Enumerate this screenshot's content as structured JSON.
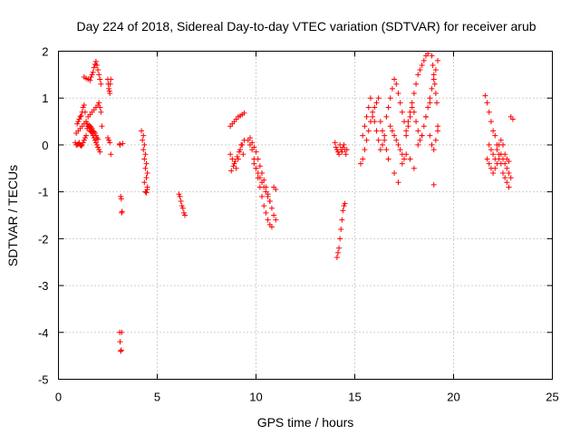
{
  "chart_data": {
    "type": "scatter",
    "title": "Day 224 of 2018, Sidereal Day-to-day VTEC variation (SDTVAR) for receiver arub",
    "xlabel": "GPS time / hours",
    "ylabel": "SDTVAR / TECUs",
    "xlim": [
      0,
      25
    ],
    "ylim": [
      -5,
      2
    ],
    "xticks": [
      0,
      5,
      10,
      15,
      20,
      25
    ],
    "yticks": [
      -5,
      -4,
      -3,
      -2,
      -1,
      0,
      1,
      2
    ],
    "xtick_labels": [
      "0",
      "5",
      "10",
      "15",
      "20",
      "25"
    ],
    "ytick_labels": [
      "-5",
      "-4",
      "-3",
      "-2",
      "-1",
      "0",
      "1",
      "2"
    ],
    "grid": true,
    "marker": "+",
    "color": "#ff0000",
    "series": [
      {
        "name": "SDTVAR",
        "x": [
          0.85,
          0.9,
          0.95,
          1.0,
          1.05,
          1.1,
          1.15,
          1.2,
          1.25,
          1.3,
          1.35,
          1.4,
          1.45,
          1.5,
          1.55,
          1.6,
          1.65,
          1.7,
          1.75,
          1.8,
          1.85,
          1.9,
          1.95,
          2.0,
          2.05,
          2.1,
          0.9,
          0.95,
          1.0,
          1.05,
          1.1,
          1.15,
          1.2,
          1.25,
          1.3,
          1.35,
          1.4,
          1.45,
          1.5,
          1.55,
          1.6,
          1.65,
          1.7,
          1.75,
          1.8,
          1.85,
          1.9,
          1.95,
          2.0,
          1.0,
          1.1,
          1.2,
          1.3,
          1.4,
          1.5,
          1.6,
          1.7,
          1.8,
          1.9,
          2.0,
          2.05,
          2.1,
          2.15,
          1.3,
          1.4,
          1.5,
          1.6,
          1.65,
          1.7,
          1.75,
          1.8,
          1.85,
          1.9,
          1.95,
          2.0,
          2.05,
          2.1,
          2.15,
          2.2,
          2.5,
          2.52,
          2.55,
          2.58,
          2.6,
          2.62,
          2.65,
          2.5,
          2.55,
          2.6,
          2.65,
          3.1,
          3.12,
          3.15,
          3.18,
          3.2,
          3.22,
          3.25,
          3.1,
          3.12,
          3.15,
          3.18,
          3.2,
          4.2,
          4.25,
          4.3,
          4.35,
          4.4,
          4.45,
          4.5,
          4.3,
          4.35,
          4.4,
          4.45,
          4.5,
          4.35,
          4.4,
          4.45,
          4.5,
          6.1,
          6.15,
          6.2,
          6.25,
          6.3,
          6.35,
          6.4,
          8.7,
          8.8,
          8.9,
          9.0,
          9.1,
          9.2,
          9.3,
          9.4,
          8.7,
          8.8,
          8.9,
          9.0,
          9.1,
          9.2,
          9.3,
          9.4,
          8.75,
          8.85,
          8.95,
          9.05,
          9.15,
          9.25,
          9.35,
          9.6,
          9.7,
          9.8,
          9.9,
          10.0,
          10.1,
          10.2,
          10.3,
          10.4,
          10.5,
          10.6,
          10.7,
          10.8,
          10.9,
          11.0,
          9.7,
          9.8,
          9.9,
          10.0,
          10.1,
          10.2,
          10.3,
          10.4,
          10.5,
          10.6,
          10.7,
          10.8,
          10.9,
          11.0,
          9.9,
          10.0,
          10.1,
          10.2,
          10.3,
          10.4,
          10.5,
          10.6,
          10.7,
          14.0,
          14.05,
          14.1,
          14.15,
          14.2,
          14.25,
          14.3,
          14.35,
          14.4,
          14.45,
          14.5,
          14.55,
          14.6,
          14.1,
          14.15,
          14.2,
          14.25,
          14.3,
          14.35,
          14.4,
          14.45,
          14.5,
          15.3,
          15.4,
          15.5,
          15.6,
          15.7,
          15.8,
          15.9,
          16.0,
          16.1,
          16.2,
          16.3,
          16.4,
          16.5,
          16.6,
          16.7,
          15.4,
          15.5,
          15.6,
          15.7,
          15.8,
          15.9,
          16.0,
          16.1,
          16.2,
          16.3,
          16.4,
          16.5,
          16.6,
          16.7,
          16.8,
          16.9,
          17.0,
          17.1,
          17.2,
          17.3,
          17.4,
          17.5,
          17.6,
          17.7,
          17.8,
          17.9,
          18.0,
          18.1,
          18.2,
          18.3,
          18.4,
          18.5,
          18.6,
          18.7,
          18.8,
          18.9,
          19.0,
          19.1,
          19.2,
          16.8,
          16.9,
          17.0,
          17.1,
          17.2,
          17.3,
          17.4,
          17.5,
          17.6,
          17.7,
          17.8,
          17.9,
          18.0,
          18.1,
          18.2,
          18.3,
          18.4,
          18.5,
          18.6,
          18.7,
          18.8,
          18.9,
          19.0,
          19.1,
          19.2,
          17.0,
          17.2,
          17.4,
          17.6,
          17.8,
          18.0,
          18.2,
          18.4,
          18.6,
          18.8,
          19.0,
          19.2,
          18.9,
          18.95,
          19.0,
          19.05,
          19.1,
          19.15,
          21.6,
          21.7,
          21.8,
          21.9,
          22.0,
          22.1,
          22.2,
          22.3,
          22.4,
          22.5,
          22.6,
          22.7,
          22.8,
          22.9,
          23.0,
          21.7,
          21.8,
          21.9,
          22.0,
          22.1,
          22.2,
          22.3,
          22.4,
          22.5,
          22.6,
          22.7,
          22.8,
          22.9,
          21.8,
          21.9,
          22.0,
          22.1,
          22.2,
          22.3,
          22.4,
          22.5,
          22.6,
          22.7,
          22.8
        ],
        "y": [
          0.05,
          0.25,
          0.45,
          0.5,
          0.55,
          0.6,
          0.62,
          0.7,
          0.8,
          0.85,
          0.7,
          0.5,
          0.45,
          0.4,
          0.35,
          0.3,
          0.28,
          0.25,
          0.2,
          0.15,
          0.1,
          0.05,
          0.0,
          -0.05,
          -0.1,
          -0.15,
          0.0,
          0.0,
          0.02,
          0.05,
          0.0,
          -0.02,
          0.0,
          0.05,
          0.1,
          0.15,
          0.2,
          0.35,
          0.4,
          0.42,
          0.4,
          0.38,
          0.35,
          0.3,
          0.28,
          0.25,
          0.2,
          0.15,
          0.12,
          0.3,
          0.35,
          0.4,
          0.45,
          0.5,
          0.6,
          0.65,
          0.7,
          0.75,
          0.8,
          0.85,
          0.9,
          0.8,
          0.7,
          1.45,
          1.42,
          1.4,
          1.38,
          1.45,
          1.5,
          1.55,
          1.65,
          1.72,
          1.78,
          1.7,
          1.6,
          1.5,
          1.4,
          1.3,
          0.4,
          1.4,
          1.3,
          1.2,
          1.15,
          1.1,
          1.3,
          1.4,
          0.15,
          0.1,
          0.05,
          -0.2,
          0.02,
          0.0,
          -1.1,
          -1.15,
          -1.45,
          -1.42,
          0.03,
          -4.0,
          -4.2,
          -4.4,
          -4.38,
          -4.0,
          0.3,
          0.1,
          -0.1,
          -0.3,
          -0.5,
          -0.7,
          -0.9,
          0.2,
          0.0,
          -0.2,
          -0.4,
          -0.6,
          -0.8,
          -1.0,
          -1.02,
          -0.95,
          -1.05,
          -1.1,
          -1.2,
          -1.3,
          -1.35,
          -1.45,
          -1.5,
          0.4,
          0.45,
          0.5,
          0.55,
          0.6,
          0.62,
          0.65,
          0.68,
          -0.2,
          -0.3,
          -0.4,
          -0.5,
          -0.3,
          -0.1,
          0.0,
          0.1,
          -0.55,
          -0.45,
          -0.35,
          -0.25,
          -0.15,
          0.0,
          -0.2,
          0.1,
          0.0,
          -0.1,
          -0.3,
          -0.5,
          -0.7,
          -0.9,
          -1.1,
          -1.3,
          -1.45,
          -1.6,
          -1.7,
          -1.75,
          -0.9,
          -0.95,
          0.15,
          0.05,
          -0.05,
          -0.15,
          -0.3,
          -0.45,
          -0.6,
          -0.75,
          -0.9,
          -1.05,
          -1.2,
          -1.35,
          -1.5,
          -1.6,
          -0.4,
          -0.5,
          -0.6,
          -0.7,
          -0.8,
          -0.9,
          -1.0,
          -1.1,
          -1.2,
          0.05,
          -0.05,
          -0.1,
          -0.15,
          -0.2,
          0.0,
          -0.1,
          -0.15,
          -0.05,
          0.0,
          -0.1,
          -0.2,
          -0.1,
          -2.4,
          -2.3,
          -2.2,
          -2.0,
          -1.8,
          -1.6,
          -1.4,
          -1.3,
          -1.25,
          -0.4,
          -0.3,
          -0.1,
          0.1,
          0.3,
          0.5,
          0.6,
          0.8,
          0.9,
          1.0,
          0.5,
          0.3,
          0.1,
          -0.1,
          -0.3,
          0.2,
          0.4,
          0.6,
          0.8,
          1.0,
          0.7,
          0.5,
          0.3,
          0.1,
          -0.1,
          0.0,
          0.2,
          0.6,
          0.8,
          1.0,
          1.2,
          1.4,
          1.3,
          1.1,
          0.9,
          0.7,
          0.5,
          0.3,
          0.5,
          0.7,
          0.9,
          1.1,
          1.3,
          1.5,
          1.6,
          1.7,
          1.8,
          1.9,
          1.95,
          0.2,
          0.0,
          -0.1,
          0.1,
          0.3,
          0.4,
          0.3,
          0.2,
          0.1,
          0.0,
          -0.1,
          -0.2,
          -0.3,
          0.2,
          0.4,
          0.6,
          0.8,
          0.7,
          0.5,
          0.3,
          0.1,
          0.2,
          0.4,
          0.6,
          0.8,
          1.0,
          1.2,
          1.4,
          1.6,
          1.8,
          -0.6,
          -0.8,
          -0.4,
          -0.2,
          -0.3,
          -0.5,
          0.0,
          0.2,
          0.6,
          0.9,
          -0.85,
          0.4,
          1.9,
          1.7,
          1.5,
          1.3,
          1.1,
          0.9,
          1.05,
          0.9,
          0.7,
          0.5,
          0.3,
          0.2,
          0.0,
          -0.2,
          -0.4,
          -0.6,
          -0.7,
          -0.8,
          -0.9,
          0.6,
          0.55,
          -0.3,
          -0.4,
          -0.5,
          -0.6,
          -0.5,
          -0.4,
          -0.3,
          -0.2,
          -0.3,
          -0.4,
          -0.5,
          -0.6,
          -0.7,
          0.0,
          -0.1,
          -0.2,
          -0.3,
          -0.1,
          0.0,
          0.1,
          0.0,
          -0.2,
          -0.3,
          -0.35
        ]
      }
    ]
  }
}
